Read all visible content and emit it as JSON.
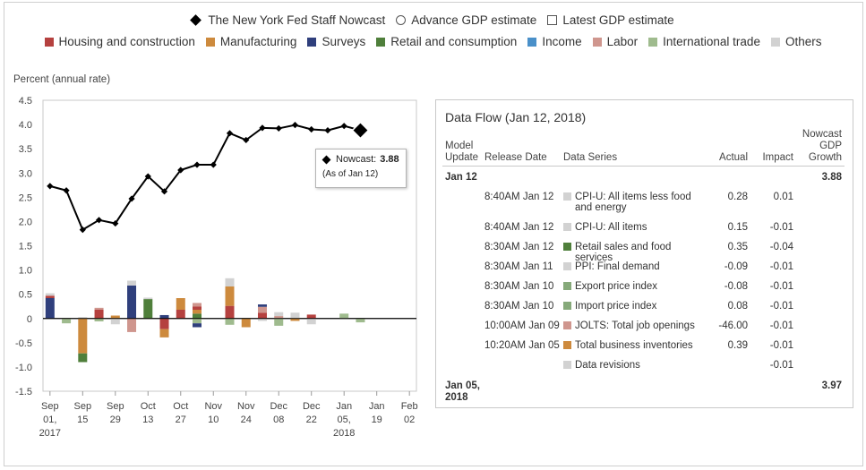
{
  "legend": {
    "row1": [
      {
        "name": "nowcast",
        "label": "The New York Fed Staff Nowcast",
        "marker": "diamond"
      },
      {
        "name": "advance",
        "label": "Advance GDP estimate",
        "marker": "circle"
      },
      {
        "name": "latest",
        "label": "Latest GDP estimate",
        "marker": "square"
      }
    ],
    "row2": [
      {
        "name": "housing",
        "label": "Housing and construction",
        "color": "#b5413f"
      },
      {
        "name": "manufacturing",
        "label": "Manufacturing",
        "color": "#cd8a3d"
      },
      {
        "name": "surveys",
        "label": "Surveys",
        "color": "#2f3f7c"
      },
      {
        "name": "retail",
        "label": "Retail and consumption",
        "color": "#4f7f3b"
      },
      {
        "name": "income",
        "label": "Income",
        "color": "#4a90c9"
      },
      {
        "name": "labor",
        "label": "Labor",
        "color": "#cf968e"
      },
      {
        "name": "intl",
        "label": "International trade",
        "color": "#9fbb8e"
      },
      {
        "name": "others",
        "label": "Others",
        "color": "#d2d2d2"
      }
    ]
  },
  "chart_data": {
    "type": "line+stacked-bar",
    "ylabel": "Percent (annual rate)",
    "ylim": [
      -1.5,
      4.5
    ],
    "yticks": [
      "4.5",
      "4.0",
      "3.5",
      "3.0",
      "2.5",
      "2.0",
      "1.5",
      "1.0",
      "0.5",
      "0",
      "-0.5",
      "-1.0",
      "-1.5"
    ],
    "xticks": [
      {
        "day": 0,
        "lines": [
          "Sep",
          "01,",
          "2017"
        ]
      },
      {
        "day": 14,
        "lines": [
          "Sep",
          "15"
        ]
      },
      {
        "day": 28,
        "lines": [
          "Sep",
          "29"
        ]
      },
      {
        "day": 42,
        "lines": [
          "Oct",
          "13"
        ]
      },
      {
        "day": 56,
        "lines": [
          "Oct",
          "27"
        ]
      },
      {
        "day": 70,
        "lines": [
          "Nov",
          "10"
        ]
      },
      {
        "day": 84,
        "lines": [
          "Nov",
          "24"
        ]
      },
      {
        "day": 98,
        "lines": [
          "Dec",
          "08"
        ]
      },
      {
        "day": 112,
        "lines": [
          "Dec",
          "22"
        ]
      },
      {
        "day": 126,
        "lines": [
          "Jan",
          "05,",
          "2018"
        ]
      },
      {
        "day": 140,
        "lines": [
          "Jan",
          "19"
        ]
      },
      {
        "day": 154,
        "lines": [
          "Feb",
          "02"
        ]
      }
    ],
    "xrange": [
      -3,
      157
    ],
    "nowcast": [
      {
        "day": 0,
        "value": 2.73
      },
      {
        "day": 7,
        "value": 2.64
      },
      {
        "day": 14,
        "value": 1.83
      },
      {
        "day": 21,
        "value": 2.03
      },
      {
        "day": 28,
        "value": 1.96
      },
      {
        "day": 35,
        "value": 2.47
      },
      {
        "day": 42,
        "value": 2.93
      },
      {
        "day": 49,
        "value": 2.62
      },
      {
        "day": 56,
        "value": 3.06
      },
      {
        "day": 63,
        "value": 3.17
      },
      {
        "day": 70,
        "value": 3.17
      },
      {
        "day": 77,
        "value": 3.82
      },
      {
        "day": 84,
        "value": 3.68
      },
      {
        "day": 91,
        "value": 3.93
      },
      {
        "day": 98,
        "value": 3.92
      },
      {
        "day": 105,
        "value": 3.99
      },
      {
        "day": 112,
        "value": 3.9
      },
      {
        "day": 119,
        "value": 3.88
      },
      {
        "day": 126,
        "value": 3.97
      },
      {
        "day": 133,
        "value": 3.88
      }
    ],
    "bars": [
      {
        "day": 0,
        "segments": [
          {
            "cat": "surveys",
            "v": 0.42
          },
          {
            "cat": "housing",
            "v": 0.05
          },
          {
            "cat": "others",
            "v": 0.05
          }
        ]
      },
      {
        "day": 7,
        "segments": [
          {
            "cat": "intl",
            "v": -0.1
          }
        ]
      },
      {
        "day": 14,
        "segments": [
          {
            "cat": "others",
            "v": 0.03
          },
          {
            "cat": "manufacturing",
            "v": -0.72
          },
          {
            "cat": "retail",
            "v": -0.18
          }
        ]
      },
      {
        "day": 21,
        "segments": [
          {
            "cat": "housing",
            "v": 0.18
          },
          {
            "cat": "labor",
            "v": 0.04
          },
          {
            "cat": "intl",
            "v": -0.06
          }
        ]
      },
      {
        "day": 28,
        "segments": [
          {
            "cat": "manufacturing",
            "v": 0.06
          },
          {
            "cat": "others",
            "v": -0.12
          }
        ]
      },
      {
        "day": 35,
        "segments": [
          {
            "cat": "surveys",
            "v": 0.68
          },
          {
            "cat": "others",
            "v": 0.1
          },
          {
            "cat": "labor",
            "v": -0.28
          }
        ]
      },
      {
        "day": 42,
        "segments": [
          {
            "cat": "retail",
            "v": 0.4
          },
          {
            "cat": "others",
            "v": 0.03
          }
        ]
      },
      {
        "day": 49,
        "segments": [
          {
            "cat": "surveys",
            "v": 0.07
          },
          {
            "cat": "housing",
            "v": -0.22
          },
          {
            "cat": "manufacturing",
            "v": -0.17
          }
        ]
      },
      {
        "day": 56,
        "segments": [
          {
            "cat": "housing",
            "v": 0.18
          },
          {
            "cat": "manufacturing",
            "v": 0.24
          }
        ]
      },
      {
        "day": 63,
        "segments": [
          {
            "cat": "retail",
            "v": 0.1
          },
          {
            "cat": "manufacturing",
            "v": 0.08
          },
          {
            "cat": "housing",
            "v": 0.07
          },
          {
            "cat": "labor",
            "v": 0.07
          },
          {
            "cat": "intl",
            "v": -0.1
          },
          {
            "cat": "surveys",
            "v": -0.08
          }
        ]
      },
      {
        "day": 77,
        "segments": [
          {
            "cat": "housing",
            "v": 0.26
          },
          {
            "cat": "manufacturing",
            "v": 0.4
          },
          {
            "cat": "others",
            "v": 0.17
          },
          {
            "cat": "intl",
            "v": -0.13
          }
        ]
      },
      {
        "day": 84,
        "segments": [
          {
            "cat": "manufacturing",
            "v": -0.18
          }
        ]
      },
      {
        "day": 91,
        "segments": [
          {
            "cat": "housing",
            "v": 0.12
          },
          {
            "cat": "labor",
            "v": 0.12
          },
          {
            "cat": "surveys",
            "v": 0.05
          },
          {
            "cat": "others",
            "v": -0.05
          }
        ]
      },
      {
        "day": 98,
        "segments": [
          {
            "cat": "labor",
            "v": 0.05
          },
          {
            "cat": "others",
            "v": 0.08
          },
          {
            "cat": "intl",
            "v": -0.15
          }
        ]
      },
      {
        "day": 105,
        "segments": [
          {
            "cat": "others",
            "v": 0.12
          },
          {
            "cat": "manufacturing",
            "v": -0.05
          }
        ]
      },
      {
        "day": 112,
        "segments": [
          {
            "cat": "housing",
            "v": 0.08
          },
          {
            "cat": "others",
            "v": -0.12
          }
        ]
      },
      {
        "day": 126,
        "segments": [
          {
            "cat": "intl",
            "v": 0.1
          }
        ]
      },
      {
        "day": 133,
        "segments": [
          {
            "cat": "intl",
            "v": -0.08
          }
        ]
      }
    ]
  },
  "tooltip": {
    "label": "Nowcast:",
    "value": "3.88",
    "asof": "(As of Jan 12)"
  },
  "data_flow": {
    "title": "Data Flow (Jan 12, 2018)",
    "headers": {
      "model_update": [
        "Model",
        "Update"
      ],
      "release_date": "Release Date",
      "data_series": "Data Series",
      "actual": "Actual",
      "impact": "Impact",
      "nowcast_growth": [
        "Nowcast",
        "GDP",
        "Growth"
      ]
    },
    "group1": {
      "label": "Jan 12",
      "nowcast": "3.88"
    },
    "rows": [
      {
        "date": "8:40AM Jan 12",
        "series": "CPI-U: All items less food and energy",
        "cat": "others",
        "actual": "0.28",
        "impact": "0.01"
      },
      {
        "date": "8:40AM Jan 12",
        "series": "CPI-U: All items",
        "cat": "others",
        "actual": "0.15",
        "impact": "-0.01"
      },
      {
        "date": "8:30AM Jan 12",
        "series": "Retail sales and food services",
        "cat": "retail",
        "actual": "0.35",
        "impact": "-0.04"
      },
      {
        "date": "8:30AM Jan 11",
        "series": "PPI: Final demand",
        "cat": "others",
        "actual": "-0.09",
        "impact": "-0.01"
      },
      {
        "date": "8:30AM Jan 10",
        "series": "Export price index",
        "cat": "intl_dark",
        "actual": "-0.08",
        "impact": "-0.01"
      },
      {
        "date": "8:30AM Jan 10",
        "series": "Import price index",
        "cat": "intl_dark",
        "actual": "0.08",
        "impact": "-0.01"
      },
      {
        "date": "10:00AM Jan 09",
        "series": "JOLTS: Total job openings",
        "cat": "labor",
        "actual": "-46.00",
        "impact": "-0.01"
      },
      {
        "date": "10:20AM Jan 05",
        "series": "Total business inventories",
        "cat": "manufacturing",
        "actual": "0.39",
        "impact": "-0.01"
      },
      {
        "date": "",
        "series": "Data revisions",
        "cat": "others",
        "actual": "",
        "impact": "-0.01"
      }
    ],
    "group2": {
      "label": [
        "Jan 05,",
        "2018"
      ],
      "nowcast": "3.97"
    }
  },
  "colors": {
    "housing": "#b5413f",
    "manufacturing": "#cd8a3d",
    "surveys": "#2f3f7c",
    "retail": "#4f7f3b",
    "income": "#4a90c9",
    "labor": "#cf968e",
    "intl": "#9fbb8e",
    "intl_dark": "#86a97a",
    "others": "#d2d2d2",
    "highlight": "#ffff66"
  }
}
